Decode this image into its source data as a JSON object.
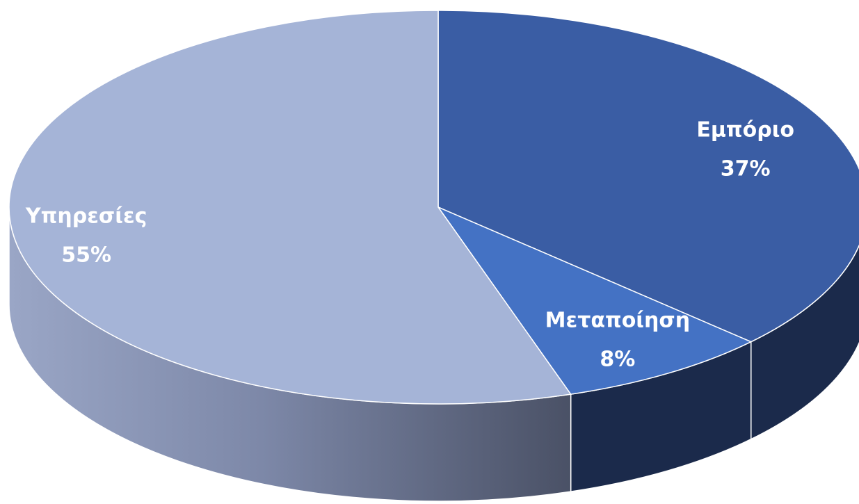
{
  "chart_data": {
    "type": "pie",
    "style": "3d",
    "categories": [
      "Εμπόριο",
      "Μεταποίηση",
      "Υπηρεσίες"
    ],
    "values": [
      37,
      8,
      55
    ],
    "value_labels": [
      "37%",
      "8%",
      "55%"
    ],
    "colors": [
      "#3A5DA4",
      "#4472C4",
      "#A5B4D7"
    ],
    "side_colors": [
      "#1B2A4B",
      "#1B2A4B",
      "#5E6987"
    ],
    "label_colors": [
      "#ffffff",
      "#ffffff",
      "#ffffff"
    ],
    "legend": "none",
    "start_angle_deg": 0,
    "direction": "clockwise"
  }
}
